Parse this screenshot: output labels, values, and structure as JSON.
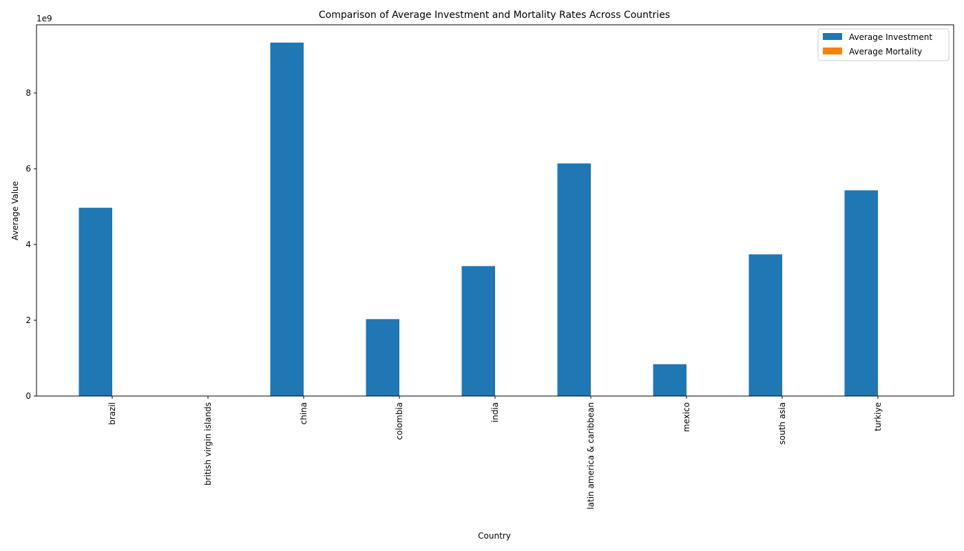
{
  "chart_data": {
    "type": "bar",
    "title": "Comparison of Average Investment and Mortality Rates Across Countries",
    "xlabel": "Country",
    "ylabel": "Average Value",
    "y_offset_label": "1e9",
    "y_scale": 1000000000,
    "ylim": [
      0,
      9800000000
    ],
    "y_ticks": [
      0,
      2000000000,
      4000000000,
      6000000000,
      8000000000
    ],
    "y_tick_labels": [
      "0",
      "2",
      "4",
      "6",
      "8"
    ],
    "categories": [
      "brazil",
      "british virgin islands",
      "china",
      "colombia",
      "india",
      "latin america & caribbean",
      "mexico",
      "south asia",
      "turkiye"
    ],
    "series": [
      {
        "name": "Average Investment",
        "color": "#1f77b4",
        "values": [
          4970000000,
          0,
          9330000000,
          2030000000,
          3430000000,
          6140000000,
          840000000,
          3740000000,
          5430000000
        ]
      },
      {
        "name": "Average Mortality",
        "color": "#ff7f0e",
        "values": [
          0,
          0,
          0,
          0,
          0,
          0,
          0,
          0,
          0
        ]
      }
    ],
    "legend_position": "top-right",
    "grid": false
  }
}
